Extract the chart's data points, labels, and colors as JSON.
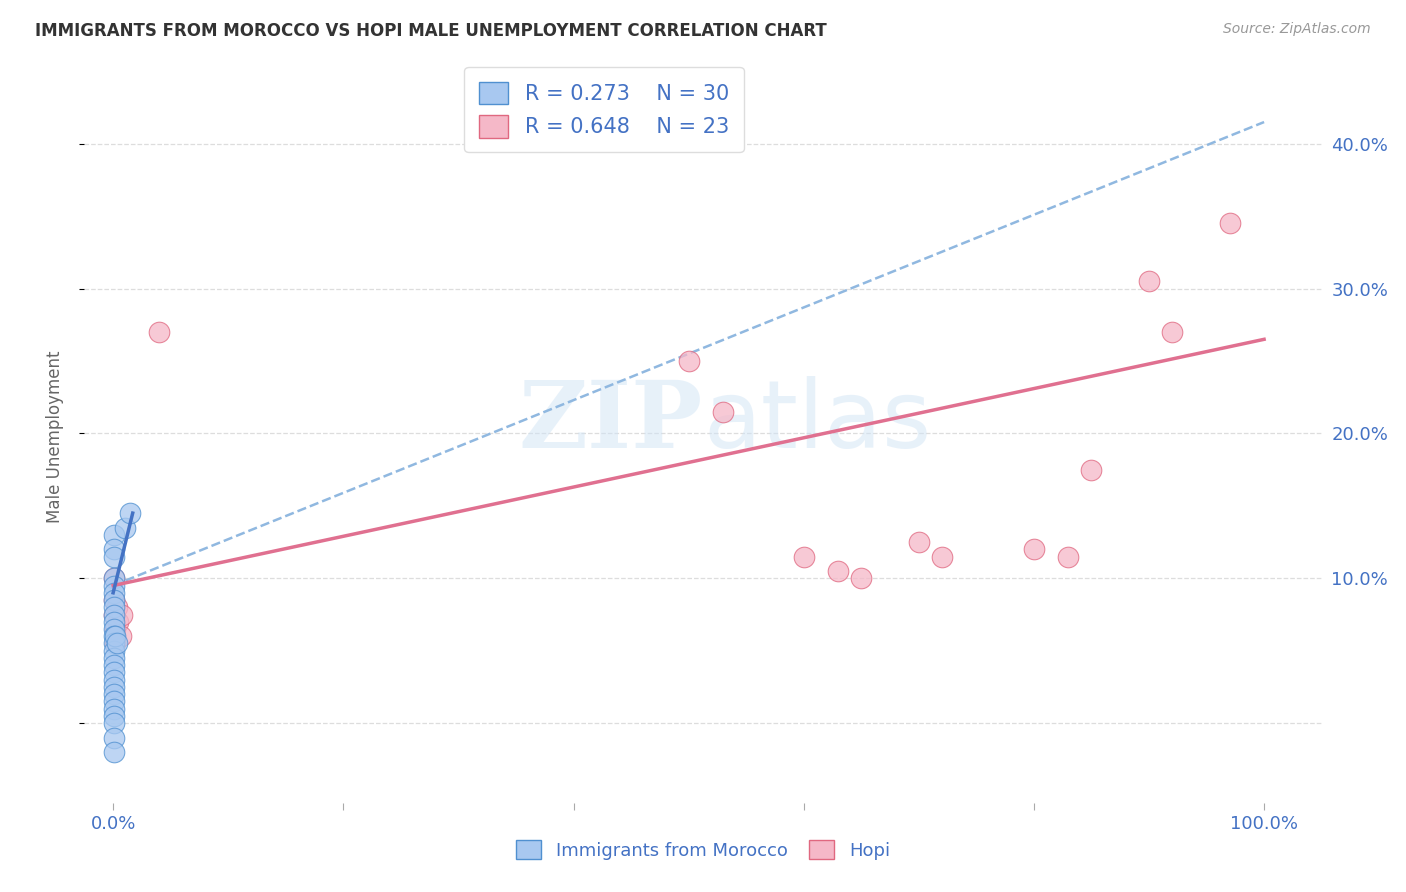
{
  "title": "IMMIGRANTS FROM MOROCCO VS HOPI MALE UNEMPLOYMENT CORRELATION CHART",
  "source": "Source: ZipAtlas.com",
  "ylabel": "Male Unemployment",
  "legend_labels": [
    "Immigrants from Morocco",
    "Hopi"
  ],
  "legend_r_n": [
    {
      "r": "0.273",
      "n": "30"
    },
    {
      "r": "0.648",
      "n": "23"
    }
  ],
  "blue_scatter_color": "#A8C8F0",
  "blue_scatter_edge": "#5090D0",
  "pink_scatter_color": "#F5B8C8",
  "pink_scatter_edge": "#E06880",
  "blue_line_color": "#4472C4",
  "pink_line_color": "#E07090",
  "dashed_line_color": "#90B8E0",
  "watermark_color": "#D0E4F5",
  "scatter_blue": [
    [
      0.001,
      0.13
    ],
    [
      0.001,
      0.12
    ],
    [
      0.001,
      0.115
    ],
    [
      0.001,
      0.1
    ],
    [
      0.001,
      0.095
    ],
    [
      0.001,
      0.09
    ],
    [
      0.001,
      0.085
    ],
    [
      0.001,
      0.08
    ],
    [
      0.001,
      0.075
    ],
    [
      0.001,
      0.07
    ],
    [
      0.001,
      0.065
    ],
    [
      0.001,
      0.06
    ],
    [
      0.001,
      0.055
    ],
    [
      0.001,
      0.05
    ],
    [
      0.001,
      0.045
    ],
    [
      0.001,
      0.04
    ],
    [
      0.001,
      0.035
    ],
    [
      0.001,
      0.03
    ],
    [
      0.001,
      0.025
    ],
    [
      0.001,
      0.02
    ],
    [
      0.001,
      0.015
    ],
    [
      0.001,
      0.01
    ],
    [
      0.001,
      0.005
    ],
    [
      0.001,
      0.0
    ],
    [
      0.001,
      -0.01
    ],
    [
      0.001,
      -0.02
    ],
    [
      0.002,
      0.06
    ],
    [
      0.003,
      0.055
    ],
    [
      0.01,
      0.135
    ],
    [
      0.015,
      0.145
    ]
  ],
  "scatter_pink": [
    [
      0.001,
      0.1
    ],
    [
      0.001,
      0.085
    ],
    [
      0.001,
      0.075
    ],
    [
      0.002,
      0.065
    ],
    [
      0.002,
      0.055
    ],
    [
      0.003,
      0.08
    ],
    [
      0.004,
      0.07
    ],
    [
      0.007,
      0.06
    ],
    [
      0.008,
      0.075
    ],
    [
      0.04,
      0.27
    ],
    [
      0.5,
      0.25
    ],
    [
      0.53,
      0.215
    ],
    [
      0.6,
      0.115
    ],
    [
      0.63,
      0.105
    ],
    [
      0.65,
      0.1
    ],
    [
      0.7,
      0.125
    ],
    [
      0.72,
      0.115
    ],
    [
      0.8,
      0.12
    ],
    [
      0.83,
      0.115
    ],
    [
      0.85,
      0.175
    ],
    [
      0.9,
      0.305
    ],
    [
      0.92,
      0.27
    ],
    [
      0.97,
      0.345
    ]
  ],
  "blue_trend_x": [
    0.0,
    0.017
  ],
  "blue_trend_y": [
    0.09,
    0.145
  ],
  "pink_trend_x": [
    0.0,
    1.0
  ],
  "pink_trend_y": [
    0.095,
    0.265
  ],
  "dashed_trend_x": [
    0.0,
    1.0
  ],
  "dashed_trend_y": [
    0.095,
    0.415
  ],
  "xlim": [
    -0.025,
    1.05
  ],
  "ylim": [
    -0.055,
    0.45
  ],
  "y_ticks": [
    0.0,
    0.1,
    0.2,
    0.3,
    0.4
  ],
  "x_tick_positions": [
    0.0,
    0.2,
    0.4,
    0.6,
    0.8,
    1.0
  ],
  "x_tick_labels": [
    "0.0%",
    "",
    "",
    "",
    "",
    "100.0%"
  ],
  "y_tick_labels_right": [
    "",
    "10.0%",
    "20.0%",
    "30.0%",
    "40.0%"
  ],
  "background_color": "#FFFFFF",
  "grid_color": "#DDDDDD"
}
